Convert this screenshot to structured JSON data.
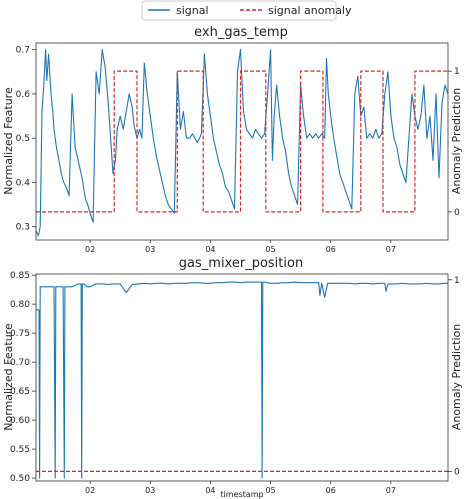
{
  "legend": {
    "placement": "top-center",
    "entries": [
      {
        "label": "signal",
        "color": "#1f77b4",
        "style": "solid"
      },
      {
        "label": "signal anomaly",
        "color": "#d62728",
        "style": "dashed"
      }
    ]
  },
  "chart_data": [
    {
      "type": "line",
      "title": "exh_gas_temp",
      "xlabel": "",
      "ylabel": "Normalized Feature",
      "y2label": "Anomaly Prediction",
      "xlim": [
        1.1,
        7.95
      ],
      "ylim": [
        0.27,
        0.715
      ],
      "y2lim": [
        -0.2,
        1.2
      ],
      "x_ticks": [
        2,
        3,
        4,
        5,
        6,
        7
      ],
      "x_tick_labels": [
        "02",
        "03",
        "04",
        "05",
        "06",
        "07"
      ],
      "y_ticks": [
        0.3,
        0.4,
        0.5,
        0.6,
        0.7
      ],
      "y_tick_labels": [
        "0.3",
        "0.4",
        "0.5",
        "0.6",
        "0.7"
      ],
      "y2_ticks": [
        0,
        1
      ],
      "y2_tick_labels": [
        "0",
        "1"
      ],
      "series": [
        {
          "name": "signal",
          "axis": "left",
          "color": "#1f77b4",
          "x": [
            1.1,
            1.14,
            1.17,
            1.2,
            1.23,
            1.26,
            1.28,
            1.31,
            1.35,
            1.38,
            1.4,
            1.44,
            1.48,
            1.52,
            1.56,
            1.6,
            1.65,
            1.7,
            1.75,
            1.8,
            1.85,
            1.88,
            1.9,
            1.93,
            1.96,
            2.0,
            2.05,
            2.1,
            2.15,
            2.2,
            2.25,
            2.3,
            2.35,
            2.38,
            2.42,
            2.45,
            2.5,
            2.55,
            2.6,
            2.65,
            2.7,
            2.73,
            2.78,
            2.82,
            2.86,
            2.9,
            2.95,
            3.0,
            3.05,
            3.1,
            3.15,
            3.2,
            3.25,
            3.3,
            3.35,
            3.4,
            3.45,
            3.5,
            3.55,
            3.6,
            3.65,
            3.7,
            3.74,
            3.78,
            3.82,
            3.85,
            3.9,
            3.95,
            4.0,
            4.05,
            4.1,
            4.15,
            4.2,
            4.25,
            4.3,
            4.35,
            4.4,
            4.45,
            4.5,
            4.55,
            4.6,
            4.65,
            4.7,
            4.75,
            4.8,
            4.85,
            4.9,
            4.95,
            5.0,
            5.03,
            5.06,
            5.1,
            5.15,
            5.2,
            5.25,
            5.3,
            5.35,
            5.4,
            5.45,
            5.5,
            5.55,
            5.6,
            5.65,
            5.7,
            5.75,
            5.8,
            5.85,
            5.9,
            5.93,
            5.96,
            6.0,
            6.05,
            6.1,
            6.15,
            6.2,
            6.25,
            6.3,
            6.35,
            6.4,
            6.45,
            6.5,
            6.55,
            6.6,
            6.65,
            6.7,
            6.75,
            6.8,
            6.85,
            6.9,
            6.95,
            7.0,
            7.05,
            7.1,
            7.15,
            7.2,
            7.25,
            7.3,
            7.35,
            7.4,
            7.45,
            7.5,
            7.55,
            7.6,
            7.65,
            7.7,
            7.75,
            7.8,
            7.85,
            7.9,
            7.95
          ],
          "y": [
            0.29,
            0.28,
            0.3,
            0.56,
            0.62,
            0.7,
            0.63,
            0.69,
            0.6,
            0.56,
            0.52,
            0.48,
            0.45,
            0.42,
            0.4,
            0.39,
            0.37,
            0.6,
            0.48,
            0.45,
            0.42,
            0.4,
            0.38,
            0.36,
            0.35,
            0.33,
            0.31,
            0.65,
            0.6,
            0.7,
            0.66,
            0.58,
            0.48,
            0.42,
            0.45,
            0.52,
            0.55,
            0.52,
            0.56,
            0.6,
            0.57,
            0.53,
            0.5,
            0.52,
            0.5,
            0.67,
            0.6,
            0.55,
            0.5,
            0.46,
            0.43,
            0.4,
            0.37,
            0.35,
            0.34,
            0.33,
            0.65,
            0.52,
            0.56,
            0.5,
            0.5,
            0.51,
            0.5,
            0.49,
            0.5,
            0.51,
            0.69,
            0.6,
            0.55,
            0.5,
            0.47,
            0.44,
            0.42,
            0.39,
            0.38,
            0.36,
            0.34,
            0.65,
            0.7,
            0.56,
            0.52,
            0.51,
            0.5,
            0.52,
            0.51,
            0.5,
            0.51,
            0.6,
            0.7,
            0.45,
            0.55,
            0.62,
            0.55,
            0.5,
            0.47,
            0.42,
            0.39,
            0.37,
            0.35,
            0.62,
            0.55,
            0.5,
            0.51,
            0.5,
            0.51,
            0.5,
            0.51,
            0.5,
            0.68,
            0.6,
            0.55,
            0.5,
            0.46,
            0.42,
            0.4,
            0.38,
            0.36,
            0.34,
            0.6,
            0.64,
            0.55,
            0.57,
            0.5,
            0.51,
            0.5,
            0.52,
            0.5,
            0.51,
            0.6,
            0.65,
            0.55,
            0.5,
            0.48,
            0.44,
            0.42,
            0.4,
            0.5,
            0.6,
            0.55,
            0.52,
            0.55,
            0.62,
            0.5,
            0.55,
            0.45,
            0.6,
            0.41,
            0.58,
            0.62,
            0.6
          ]
        },
        {
          "name": "signal anomaly",
          "axis": "right",
          "color": "#d62728",
          "x": [
            1.1,
            2.4,
            2.4,
            2.78,
            2.78,
            3.45,
            3.45,
            3.88,
            3.88,
            4.5,
            4.5,
            4.92,
            4.92,
            5.5,
            5.5,
            5.87,
            5.87,
            6.5,
            6.5,
            6.87,
            6.87,
            7.4,
            7.4,
            7.95
          ],
          "y": [
            0,
            0,
            1,
            1,
            0,
            0,
            1,
            1,
            0,
            0,
            1,
            1,
            0,
            0,
            1,
            1,
            0,
            0,
            1,
            1,
            0,
            0,
            1,
            1
          ]
        }
      ]
    },
    {
      "type": "line",
      "title": "gas_mixer_position",
      "xlabel": "timestamp",
      "ylabel": "Normalized Feature",
      "y2label": "Anomaly Prediction",
      "xlim": [
        1.1,
        7.95
      ],
      "ylim": [
        0.495,
        0.852
      ],
      "y2lim": [
        -0.05,
        1.03
      ],
      "x_ticks": [
        2,
        3,
        4,
        5,
        6,
        7
      ],
      "x_tick_labels": [
        "02",
        "03",
        "04",
        "05",
        "06",
        "07"
      ],
      "y_ticks": [
        0.5,
        0.55,
        0.6,
        0.65,
        0.7,
        0.75,
        0.8,
        0.85
      ],
      "y_tick_labels": [
        "0.50",
        "0.55",
        "0.60",
        "0.65",
        "0.70",
        "0.75",
        "0.80",
        "0.85"
      ],
      "y2_ticks": [
        0,
        1
      ],
      "y2_tick_labels": [
        "0",
        "1"
      ],
      "series": [
        {
          "name": "signal",
          "axis": "left",
          "color": "#1f77b4",
          "x": [
            1.1,
            1.15,
            1.16,
            1.17,
            1.18,
            1.2,
            1.3,
            1.35,
            1.4,
            1.42,
            1.43,
            1.45,
            1.5,
            1.55,
            1.57,
            1.58,
            1.6,
            1.7,
            1.8,
            1.85,
            1.86,
            1.87,
            1.9,
            1.95,
            2.0,
            2.1,
            2.2,
            2.3,
            2.4,
            2.5,
            2.6,
            2.7,
            2.8,
            2.9,
            3.0,
            3.1,
            3.2,
            3.3,
            3.4,
            3.5,
            3.6,
            3.7,
            3.8,
            3.9,
            4.0,
            4.1,
            4.2,
            4.3,
            4.4,
            4.5,
            4.6,
            4.7,
            4.8,
            4.85,
            4.86,
            4.87,
            4.9,
            5.0,
            5.1,
            5.2,
            5.3,
            5.4,
            5.5,
            5.6,
            5.7,
            5.8,
            5.82,
            5.85,
            5.9,
            5.95,
            6.0,
            6.1,
            6.2,
            6.3,
            6.4,
            6.5,
            6.6,
            6.7,
            6.8,
            6.9,
            6.92,
            6.95,
            7.0,
            7.1,
            7.2,
            7.3,
            7.4,
            7.5,
            7.6,
            7.7,
            7.8,
            7.9,
            7.95
          ],
          "y": [
            0.79,
            0.79,
            0.5,
            0.83,
            0.83,
            0.83,
            0.83,
            0.83,
            0.83,
            0.5,
            0.83,
            0.83,
            0.83,
            0.83,
            0.5,
            0.83,
            0.83,
            0.83,
            0.835,
            0.835,
            0.5,
            0.835,
            0.835,
            0.83,
            0.83,
            0.835,
            0.835,
            0.834,
            0.835,
            0.835,
            0.82,
            0.834,
            0.835,
            0.836,
            0.835,
            0.836,
            0.836,
            0.835,
            0.836,
            0.836,
            0.836,
            0.837,
            0.837,
            0.836,
            0.836,
            0.837,
            0.837,
            0.838,
            0.838,
            0.837,
            0.838,
            0.838,
            0.838,
            0.838,
            0.5,
            0.838,
            0.838,
            0.836,
            0.836,
            0.837,
            0.837,
            0.838,
            0.837,
            0.837,
            0.837,
            0.837,
            0.815,
            0.836,
            0.812,
            0.836,
            0.836,
            0.836,
            0.836,
            0.836,
            0.835,
            0.836,
            0.836,
            0.835,
            0.836,
            0.836,
            0.822,
            0.835,
            0.835,
            0.835,
            0.836,
            0.835,
            0.835,
            0.835,
            0.836,
            0.835,
            0.835,
            0.836,
            0.836
          ]
        },
        {
          "name": "signal anomaly",
          "axis": "right",
          "color": "#d62728",
          "x": [
            1.1,
            7.95
          ],
          "y": [
            0,
            0
          ]
        }
      ]
    }
  ]
}
